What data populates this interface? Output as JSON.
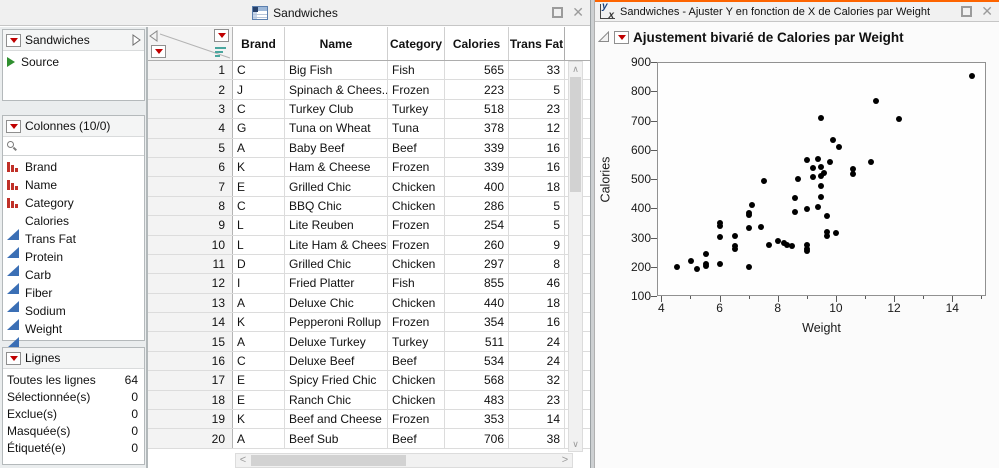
{
  "left_window": {
    "title": "Sandwiches",
    "sidebar": {
      "table_panel": {
        "title": "Sandwiches",
        "source_label": "Source"
      },
      "columns_panel": {
        "title": "Colonnes (10/0)",
        "columns": [
          {
            "name": "Brand",
            "type": "nominal"
          },
          {
            "name": "Name",
            "type": "nominal"
          },
          {
            "name": "Category",
            "type": "nominal"
          },
          {
            "name": "Calories",
            "type": "continuous"
          },
          {
            "name": "Trans Fat",
            "type": "continuous"
          },
          {
            "name": "Protein",
            "type": "continuous"
          },
          {
            "name": "Carb",
            "type": "continuous"
          },
          {
            "name": "Fiber",
            "type": "continuous"
          },
          {
            "name": "Sodium",
            "type": "continuous"
          },
          {
            "name": "Weight",
            "type": "continuous"
          }
        ]
      },
      "rows_panel": {
        "title": "Lignes",
        "stats": [
          {
            "label": "Toutes les lignes",
            "value": "64"
          },
          {
            "label": "Sélectionnée(s)",
            "value": "0"
          },
          {
            "label": "Exclue(s)",
            "value": "0"
          },
          {
            "label": "Masquée(s)",
            "value": "0"
          },
          {
            "label": "Étiqueté(e)",
            "value": "0"
          }
        ]
      }
    },
    "table": {
      "column_headers": [
        "Brand",
        "Name",
        "Category",
        "Calories",
        "Trans Fat"
      ],
      "rows": [
        [
          "1",
          "C",
          "Big Fish",
          "Fish",
          "565",
          "33"
        ],
        [
          "2",
          "J",
          "Spinach & Chees...",
          "Frozen",
          "223",
          "5"
        ],
        [
          "3",
          "C",
          "Turkey Club",
          "Turkey",
          "518",
          "23"
        ],
        [
          "4",
          "G",
          "Tuna on Wheat",
          "Tuna",
          "378",
          "12"
        ],
        [
          "5",
          "A",
          "Baby Beef",
          "Beef",
          "339",
          "16"
        ],
        [
          "6",
          "K",
          "Ham & Cheese",
          "Frozen",
          "339",
          "16"
        ],
        [
          "7",
          "E",
          "Grilled Chic",
          "Chicken",
          "400",
          "18"
        ],
        [
          "8",
          "C",
          "BBQ Chic",
          "Chicken",
          "286",
          "5"
        ],
        [
          "9",
          "L",
          "Lite Reuben",
          "Frozen",
          "254",
          "5"
        ],
        [
          "10",
          "L",
          "Lite Ham & Cheese",
          "Frozen",
          "260",
          "9"
        ],
        [
          "11",
          "D",
          "Grilled Chic",
          "Chicken",
          "297",
          "8"
        ],
        [
          "12",
          "I",
          "Fried Platter",
          "Fish",
          "855",
          "46"
        ],
        [
          "13",
          "A",
          "Deluxe Chic",
          "Chicken",
          "440",
          "18"
        ],
        [
          "14",
          "K",
          "Pepperoni Rollup",
          "Frozen",
          "354",
          "16"
        ],
        [
          "15",
          "A",
          "Deluxe Turkey",
          "Turkey",
          "511",
          "24"
        ],
        [
          "16",
          "C",
          "Deluxe Beef",
          "Beef",
          "534",
          "24"
        ],
        [
          "17",
          "E",
          "Spicy Fried Chic",
          "Chicken",
          "568",
          "32"
        ],
        [
          "18",
          "E",
          "Ranch Chic",
          "Chicken",
          "483",
          "23"
        ],
        [
          "19",
          "K",
          "Beef and Cheese",
          "Frozen",
          "353",
          "14"
        ],
        [
          "20",
          "A",
          "Beef Sub",
          "Beef",
          "706",
          "38"
        ]
      ]
    }
  },
  "right_window": {
    "title": "Sandwiches - Ajuster Y en fonction de X de Calories par Weight",
    "report_title": "Ajustement bivarié de Calories par Weight"
  },
  "chart_data": {
    "type": "scatter",
    "title": "Ajustement bivarié de Calories par Weight",
    "xlabel": "Weight",
    "ylabel": "Calories",
    "xlim": [
      3.85,
      15.16
    ],
    "ylim": [
      100,
      900
    ],
    "x_major_ticks": [
      4,
      6,
      8,
      10,
      12,
      14
    ],
    "x_minor_ticks": [
      5,
      7,
      9,
      11,
      13,
      15
    ],
    "y_ticks": [
      900,
      800,
      700,
      600,
      500,
      400,
      300,
      200,
      100
    ],
    "grid": false,
    "legend": false,
    "marker_color": "#000000",
    "points": [
      [
        4.5,
        195
      ],
      [
        5.0,
        218
      ],
      [
        5.2,
        190
      ],
      [
        5.5,
        200
      ],
      [
        5.5,
        208
      ],
      [
        5.5,
        240
      ],
      [
        6.0,
        208
      ],
      [
        6.0,
        300
      ],
      [
        6.0,
        337
      ],
      [
        6.0,
        350
      ],
      [
        6.5,
        258
      ],
      [
        6.5,
        270
      ],
      [
        6.5,
        303
      ],
      [
        7.0,
        195
      ],
      [
        7.0,
        332
      ],
      [
        7.0,
        375
      ],
      [
        7.0,
        383
      ],
      [
        7.1,
        410
      ],
      [
        7.4,
        333
      ],
      [
        7.5,
        494
      ],
      [
        7.7,
        273
      ],
      [
        8.0,
        286
      ],
      [
        8.2,
        279
      ],
      [
        8.3,
        271
      ],
      [
        8.5,
        268
      ],
      [
        8.6,
        385
      ],
      [
        8.6,
        435
      ],
      [
        8.7,
        500
      ],
      [
        9.0,
        251
      ],
      [
        9.0,
        259
      ],
      [
        9.0,
        274
      ],
      [
        9.0,
        398
      ],
      [
        9.0,
        565
      ],
      [
        9.2,
        506
      ],
      [
        9.2,
        537
      ],
      [
        9.4,
        402
      ],
      [
        9.4,
        570
      ],
      [
        9.5,
        437
      ],
      [
        9.5,
        476
      ],
      [
        9.5,
        512
      ],
      [
        9.5,
        541
      ],
      [
        9.5,
        710
      ],
      [
        9.6,
        520
      ],
      [
        9.7,
        305
      ],
      [
        9.7,
        318
      ],
      [
        9.7,
        374
      ],
      [
        9.8,
        558
      ],
      [
        9.9,
        635
      ],
      [
        10.0,
        315
      ],
      [
        10.1,
        610
      ],
      [
        10.6,
        518
      ],
      [
        10.6,
        535
      ],
      [
        11.2,
        560
      ],
      [
        11.4,
        770
      ],
      [
        12.2,
        706
      ],
      [
        14.7,
        855
      ]
    ]
  },
  "colors": {
    "accent_orange": "#fd6400",
    "red_triangle": "#c00000",
    "nominal_icon_red": "#c03028",
    "continuous_icon_blue": "#3b6fb5",
    "marker_black": "#000000"
  }
}
